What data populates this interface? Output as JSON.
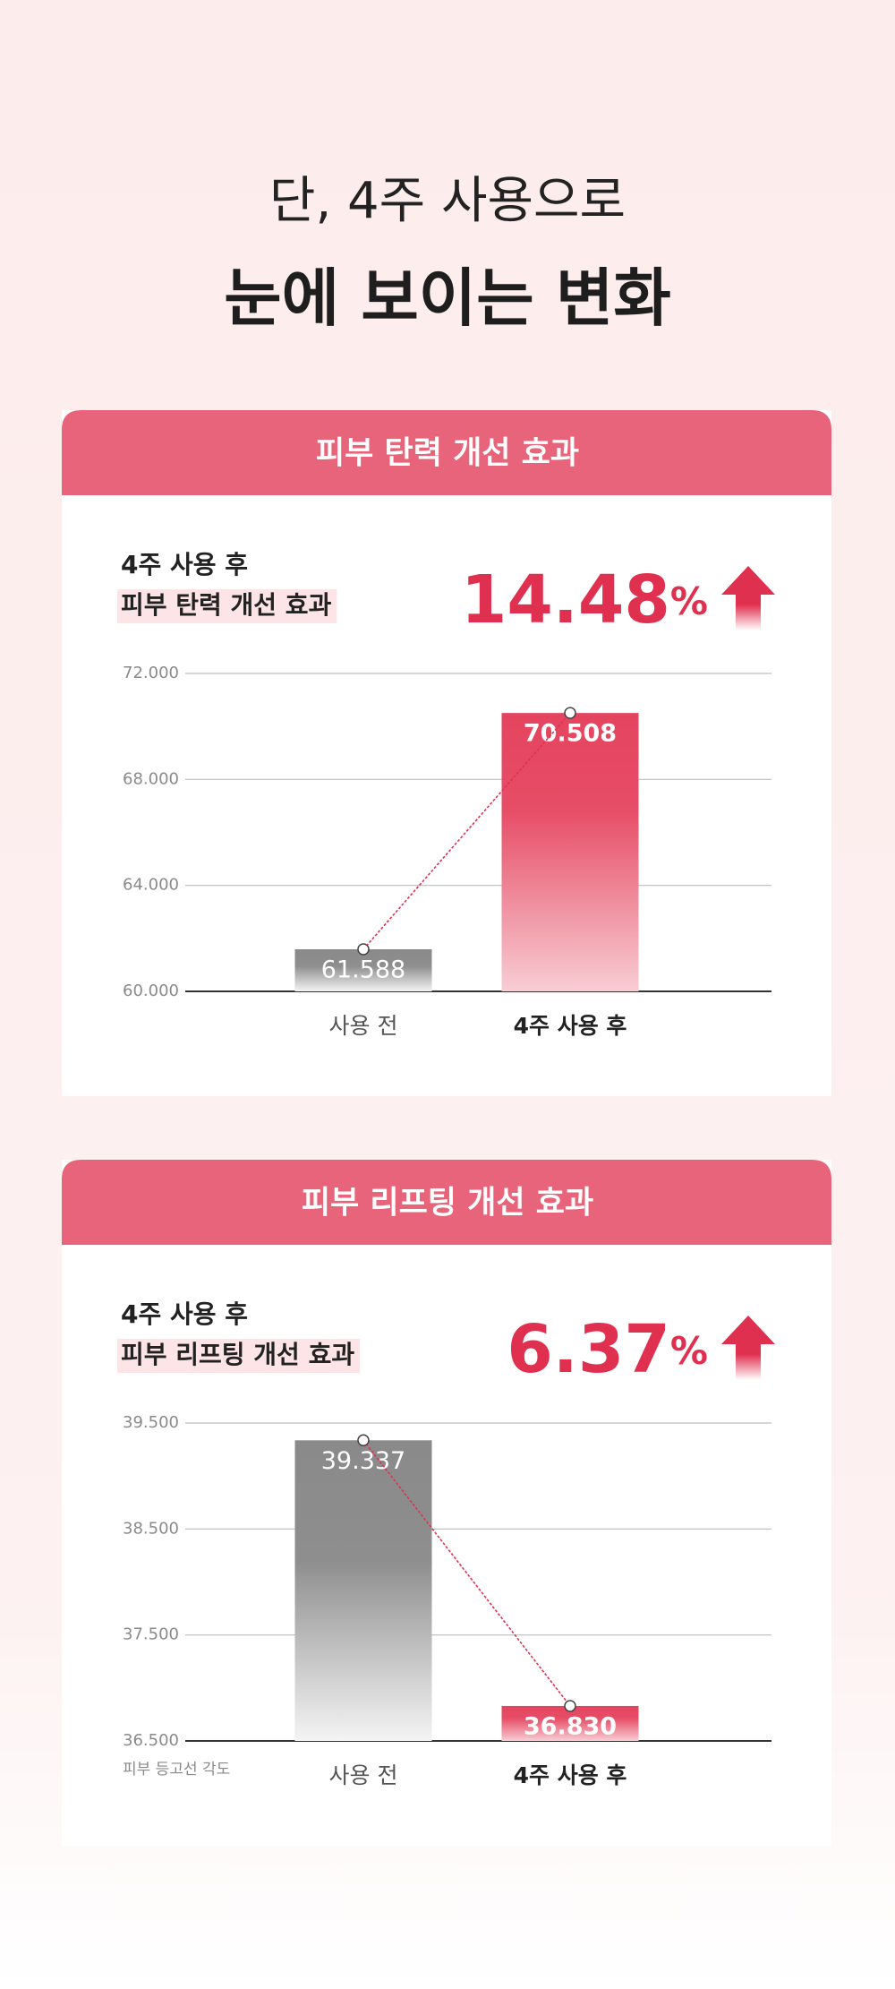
{
  "header": {
    "line1": "단, 4주 사용으로",
    "line2": "눈에 보이는 변화"
  },
  "chart_data": [
    {
      "type": "bar",
      "title": "피부 탄력 개선 효과",
      "subtitle": [
        "4주 사용 후",
        "피부 탄력 개선 효과"
      ],
      "change": 14.48,
      "change_unit": "%",
      "categories": [
        "사용 전",
        "4주 사용 후"
      ],
      "values": [
        61.588,
        70.508
      ],
      "value_labels": [
        "61.588",
        "70.508"
      ],
      "colors": [
        "#8a8a8a",
        "#e5445f"
      ],
      "ylim": [
        60,
        72
      ],
      "yticks": [
        {
          "value": 60,
          "label": "60.000"
        },
        {
          "value": 64,
          "label": "64.000"
        },
        {
          "value": 68,
          "label": "68.000"
        },
        {
          "value": 72,
          "label": "72.000"
        }
      ],
      "grid": true
    },
    {
      "type": "bar",
      "title": "피부 리프팅 개선 효과",
      "subtitle": [
        "4주 사용 후",
        "피부 리프팅 개선 효과"
      ],
      "change": 6.37,
      "change_unit": "%",
      "categories": [
        "사용 전",
        "4주 사용 후"
      ],
      "values": [
        39.337,
        36.83
      ],
      "value_labels": [
        "39.337",
        "36.830"
      ],
      "colors": [
        "#8a8a8a",
        "#e5445f"
      ],
      "ylim": [
        36.5,
        39.5
      ],
      "yticks": [
        {
          "value": 36.5,
          "label": "36.500"
        },
        {
          "value": 37.5,
          "label": "37.500"
        },
        {
          "value": 38.5,
          "label": "38.500"
        },
        {
          "value": 39.5,
          "label": "39.500"
        }
      ],
      "ylabel": "피부 등고선 각도",
      "grid": true
    }
  ]
}
